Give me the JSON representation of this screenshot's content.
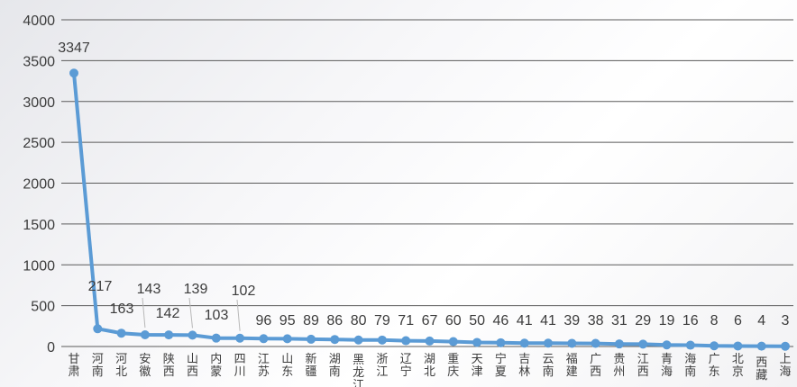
{
  "chart_data": {
    "type": "line",
    "title": "",
    "xlabel": "",
    "ylabel": "",
    "ylim": [
      0,
      4000
    ],
    "yticks": [
      0,
      500,
      1000,
      1500,
      2000,
      2500,
      3000,
      3500,
      4000
    ],
    "grid": true,
    "legend": "none",
    "line_color": "#5b9bd5",
    "categories": [
      "甘肃",
      "河南",
      "河北",
      "安徽",
      "陕西",
      "山西",
      "内蒙",
      "四川",
      "江苏",
      "山东",
      "新疆",
      "湖南",
      "黑龙江",
      "浙江",
      "辽宁",
      "湖北",
      "重庆",
      "天津",
      "宁夏",
      "吉林",
      "云南",
      "福建",
      "广西",
      "贵州",
      "江西",
      "青海",
      "海南",
      "广东",
      "北京",
      "西藏",
      "上海"
    ],
    "series": [
      {
        "values": [
          3347,
          217,
          163,
          143,
          142,
          139,
          103,
          102,
          96,
          95,
          89,
          86,
          80,
          79,
          71,
          67,
          60,
          50,
          46,
          41,
          41,
          39,
          38,
          31,
          29,
          19,
          16,
          8,
          6,
          4,
          3
        ]
      }
    ]
  }
}
